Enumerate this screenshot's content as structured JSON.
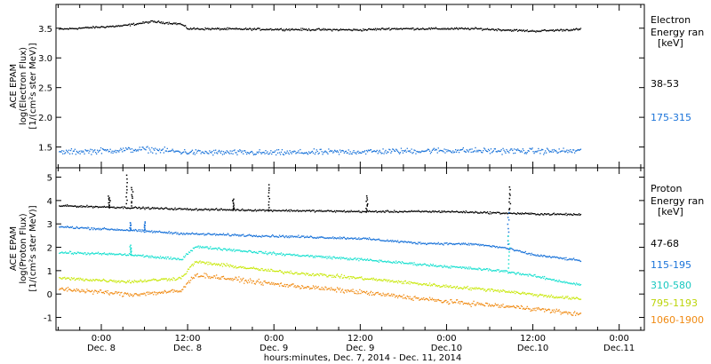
{
  "colors": {
    "black": "#000000",
    "blue": "#1a73d9",
    "cyan": "#19e0d0",
    "yellowgreen": "#c9e80c",
    "orange": "#f08a12"
  },
  "time_axis": {
    "xlabel": "hours:minutes, Dec. 7, 2014 - Dec. 11, 2014",
    "tick_hours": [
      0,
      12,
      24,
      36,
      48,
      60,
      72
    ],
    "tick_times": [
      "0:00",
      "12:00",
      "0:00",
      "12:00",
      "0:00",
      "12:00",
      "0:00"
    ],
    "tick_dates": [
      "Dec. 8",
      "Dec. 8",
      "Dec. 9",
      "Dec. 9",
      "Dec.10",
      "Dec.10",
      "Dec.11"
    ],
    "range_hours": [
      -6.3,
      75.5
    ],
    "data_end_hours": 66.6
  },
  "chart_data": [
    {
      "type": "scatter",
      "panel": "electron",
      "ylabel_line1": "ACE EPAM",
      "ylabel_line2": "log(Electron Flux)",
      "ylabel_line3": "[1/(cm²s ster MeV)]",
      "ylim": [
        1.15,
        3.9
      ],
      "yticks": [
        1.5,
        2.0,
        2.5,
        3.0,
        3.5
      ],
      "ytick_labels": [
        "1.5",
        "2.0",
        "2.5",
        "3.0",
        "3.5"
      ],
      "legend_title_line1": "Electron",
      "legend_title_line2": "Energy ran",
      "legend_unit": "[keV]",
      "series": [
        {
          "name": "38-53",
          "color_key": "black",
          "baseline": [
            [
              -6,
              3.49
            ],
            [
              3,
              3.55
            ],
            [
              7,
              3.62
            ],
            [
              11,
              3.58
            ],
            [
              12,
              3.5
            ],
            [
              24,
              3.49
            ],
            [
              36,
              3.48
            ],
            [
              40,
              3.5
            ],
            [
              52,
              3.5
            ],
            [
              60,
              3.46
            ],
            [
              66.6,
              3.49
            ]
          ],
          "noise": 0.025
        },
        {
          "name": "175-315",
          "color_key": "blue",
          "baseline": [
            [
              -6,
              1.42
            ],
            [
              6,
              1.47
            ],
            [
              12,
              1.42
            ],
            [
              24,
              1.41
            ],
            [
              36,
              1.43
            ],
            [
              48,
              1.45
            ],
            [
              60,
              1.44
            ],
            [
              66.6,
              1.44
            ]
          ],
          "noise": 0.07
        }
      ]
    },
    {
      "type": "scatter",
      "panel": "proton",
      "ylabel_line1": "ACE EPAM",
      "ylabel_line2": "log(Proton Flux)",
      "ylabel_line3": "[1/(cm²s ster MeV)]",
      "ylim": [
        -1.55,
        5.4
      ],
      "yticks": [
        -1,
        0,
        1,
        2,
        3,
        4,
        5
      ],
      "ytick_labels": [
        "-1",
        "0",
        "1",
        "2",
        "3",
        "4",
        "5"
      ],
      "legend_title_line1": "Proton",
      "legend_title_line2": "Energy ran",
      "legend_unit": "[keV]",
      "series": [
        {
          "name": "47-68",
          "color_key": "black",
          "baseline": [
            [
              -6,
              3.8
            ],
            [
              12,
              3.65
            ],
            [
              24,
              3.6
            ],
            [
              36,
              3.55
            ],
            [
              48,
              3.55
            ],
            [
              60,
              3.45
            ],
            [
              66.6,
              3.42
            ]
          ],
          "noise": 0.06,
          "spikes": [
            [
              3.5,
              5.1
            ],
            [
              4.2,
              4.6
            ],
            [
              23.2,
              4.7
            ],
            [
              18.3,
              4.1
            ],
            [
              36.8,
              4.2
            ],
            [
              56.7,
              4.6
            ],
            [
              1,
              4.2
            ]
          ]
        },
        {
          "name": "115-195",
          "color_key": "blue",
          "baseline": [
            [
              -6,
              2.9
            ],
            [
              4,
              2.75
            ],
            [
              12,
              2.6
            ],
            [
              24,
              2.5
            ],
            [
              36,
              2.4
            ],
            [
              44,
              2.2
            ],
            [
              52,
              2.15
            ],
            [
              56,
              2.0
            ],
            [
              60,
              1.7
            ],
            [
              66.6,
              1.45
            ]
          ],
          "noise": 0.07,
          "spikes": [
            [
              56.5,
              3.5
            ],
            [
              4,
              3.05
            ],
            [
              6,
              3.1
            ]
          ]
        },
        {
          "name": "310-580",
          "color_key": "cyan",
          "baseline": [
            [
              -6,
              1.8
            ],
            [
              4,
              1.7
            ],
            [
              11,
              1.5
            ],
            [
              13,
              2.05
            ],
            [
              24,
              1.75
            ],
            [
              36,
              1.5
            ],
            [
              48,
              1.2
            ],
            [
              56,
              1.0
            ],
            [
              60,
              0.8
            ],
            [
              66.6,
              0.4
            ]
          ],
          "noise": 0.08,
          "spikes": [
            [
              56.6,
              2.5
            ],
            [
              4,
              2.1
            ]
          ]
        },
        {
          "name": "795-1193",
          "color_key": "yellowgreen",
          "baseline": [
            [
              -6,
              0.7
            ],
            [
              4,
              0.55
            ],
            [
              11,
              0.7
            ],
            [
              13,
              1.4
            ],
            [
              24,
              1.0
            ],
            [
              36,
              0.7
            ],
            [
              48,
              0.35
            ],
            [
              56,
              0.15
            ],
            [
              60,
              0.0
            ],
            [
              66.6,
              -0.2
            ]
          ],
          "noise": 0.1
        },
        {
          "name": "1060-1900",
          "color_key": "orange",
          "baseline": [
            [
              -6,
              0.25
            ],
            [
              4,
              0.0
            ],
            [
              11,
              0.15
            ],
            [
              13,
              0.85
            ],
            [
              24,
              0.45
            ],
            [
              36,
              0.1
            ],
            [
              48,
              -0.3
            ],
            [
              56,
              -0.5
            ],
            [
              60,
              -0.6
            ],
            [
              66.6,
              -0.85
            ]
          ],
          "noise": 0.14
        }
      ]
    }
  ]
}
